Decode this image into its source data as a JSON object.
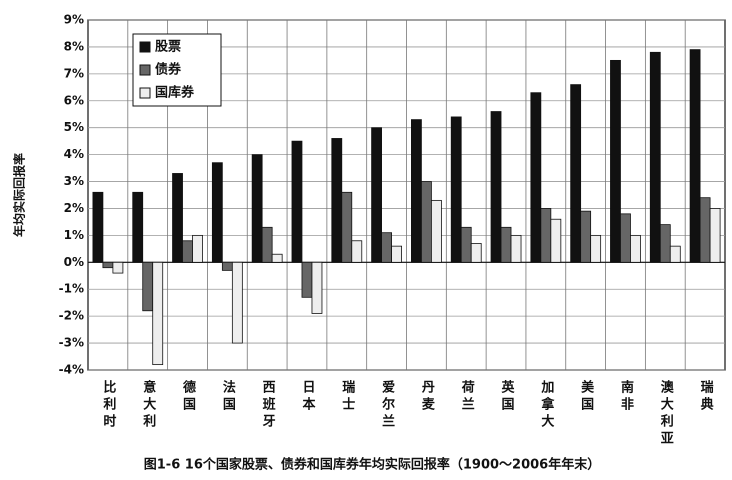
{
  "chart_data": {
    "type": "bar",
    "title": "图1-6  16个国家股票、债券和国库券年均实际回报率（1900～2006年年末）",
    "y_label": "年均实际回报率",
    "categories": [
      "比利时",
      "意大利",
      "德国",
      "法国",
      "西班牙",
      "日本",
      "瑞士",
      "爱尔兰",
      "丹麦",
      "荷兰",
      "英国",
      "加拿大",
      "美国",
      "南非",
      "澳大利亚",
      "瑞典"
    ],
    "series": [
      {
        "name": "股票",
        "color": "#111111",
        "values": [
          2.6,
          2.6,
          3.3,
          3.7,
          4.0,
          4.5,
          4.6,
          5.0,
          5.3,
          5.4,
          5.6,
          6.3,
          6.6,
          7.5,
          7.8,
          7.9
        ]
      },
      {
        "name": "债券",
        "color": "#666666",
        "values": [
          -0.2,
          -1.8,
          0.8,
          -0.3,
          1.3,
          -1.3,
          2.6,
          1.1,
          3.0,
          1.3,
          1.3,
          2.0,
          1.9,
          1.8,
          1.4,
          2.4
        ]
      },
      {
        "name": "国库券",
        "color": "#eeeeee",
        "values": [
          -0.4,
          -3.8,
          1.0,
          -3.0,
          0.3,
          -1.9,
          0.8,
          0.6,
          2.3,
          0.7,
          1.0,
          1.6,
          1.0,
          1.0,
          0.6,
          2.0
        ]
      }
    ],
    "ylim": [
      -4,
      9
    ],
    "yticks": [
      {
        "value": -4,
        "label": "-4%"
      },
      {
        "value": -3,
        "label": "-3%"
      },
      {
        "value": -2,
        "label": "-2%"
      },
      {
        "value": -1,
        "label": "-1%"
      },
      {
        "value": 0,
        "label": "0%"
      },
      {
        "value": 1,
        "label": "1%"
      },
      {
        "value": 2,
        "label": "2%"
      },
      {
        "value": 3,
        "label": "3%"
      },
      {
        "value": 4,
        "label": "4%"
      },
      {
        "value": 5,
        "label": "5%"
      },
      {
        "value": 6,
        "label": "6%"
      },
      {
        "value": 7,
        "label": "7%"
      },
      {
        "value": 8,
        "label": "8%"
      },
      {
        "value": 9,
        "label": "9%"
      }
    ],
    "grid": true,
    "legend": "upper left"
  }
}
